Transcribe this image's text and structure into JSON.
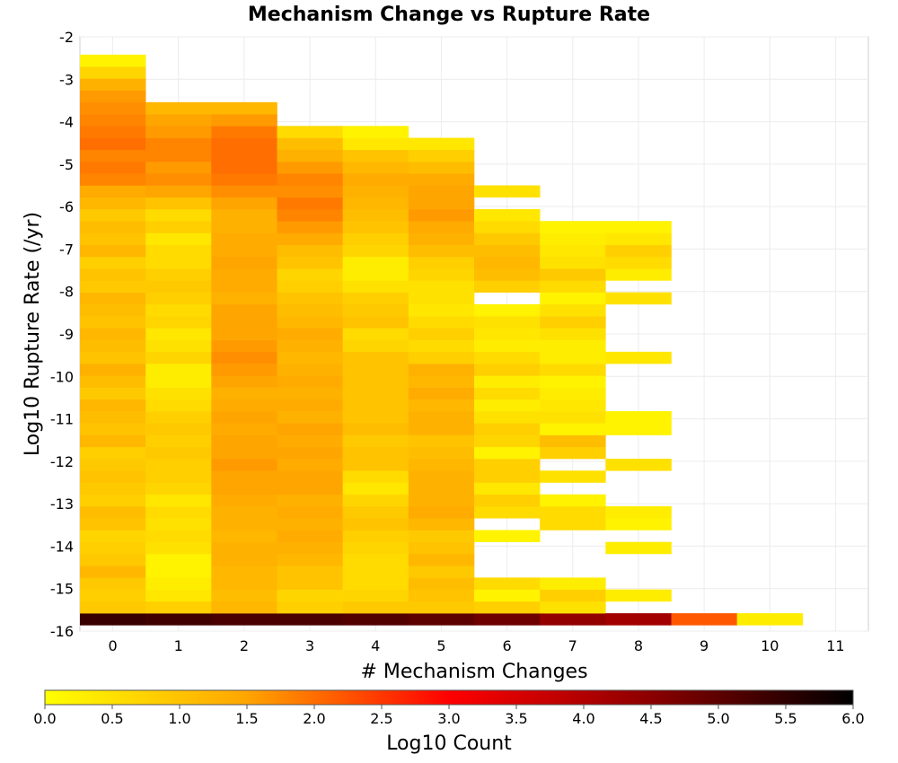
{
  "chart_data": {
    "type": "heatmap",
    "title": "Mechanism Change vs Rupture Rate",
    "xlabel": "# Mechanism Changes",
    "ylabel": "Log10 Rupture Rate (/yr)",
    "xlim": [
      -0.5,
      11.5
    ],
    "ylim": [
      -16,
      -2
    ],
    "x_ticks": [
      "0",
      "1",
      "2",
      "3",
      "4",
      "5",
      "6",
      "7",
      "8",
      "9",
      "10",
      "11"
    ],
    "y_ticks": [
      "-2",
      "-3",
      "-4",
      "-5",
      "-6",
      "-7",
      "-8",
      "-9",
      "-10",
      "-11",
      "-12",
      "-13",
      "-14",
      "-15",
      "-16"
    ],
    "y_bin_size": 0.28,
    "grid": true,
    "colorbar": {
      "label": "Log10 Count",
      "min": 0,
      "max": 6,
      "ticks": [
        "0.0",
        "0.5",
        "1.0",
        "1.5",
        "2.0",
        "2.5",
        "3.0",
        "3.5",
        "4.0",
        "4.5",
        "5.0",
        "5.5",
        "6.0"
      ],
      "colors": [
        "#ffff00",
        "#ffa500",
        "#ff0000",
        "#8b0000",
        "#000000"
      ]
    },
    "columns": [
      {
        "x": 0,
        "y_start": -15.86,
        "values": [
          5.4,
          0.9,
          0.8,
          0.9,
          1.2,
          0.9,
          0.8,
          0.7,
          1.0,
          1.1,
          0.8,
          0.9,
          1.0,
          0.9,
          0.8,
          1.2,
          1.0,
          1.1,
          1.2,
          0.9,
          1.1,
          1.3,
          1.0,
          1.1,
          1.2,
          1.0,
          1.1,
          1.2,
          0.9,
          1.0,
          0.8,
          1.2,
          1.0,
          1.1,
          0.9,
          1.2,
          1.4,
          1.8,
          1.9,
          1.8,
          2.0,
          1.9,
          1.8,
          1.7,
          1.6,
          1.3,
          0.7,
          0.2
        ]
      },
      {
        "x": 1,
        "y_start": -15.86,
        "values": [
          5.3,
          0.8,
          0.4,
          0.3,
          0.2,
          0.2,
          0.5,
          0.6,
          0.5,
          0.6,
          0.4,
          0.7,
          0.8,
          0.8,
          0.9,
          0.8,
          0.9,
          0.8,
          0.6,
          0.5,
          0.3,
          0.3,
          0.7,
          0.5,
          0.4,
          0.7,
          0.6,
          0.8,
          0.9,
          0.8,
          0.6,
          0.6,
          0.4,
          0.8,
          0.6,
          1.0,
          1.5,
          1.7,
          1.6,
          1.8,
          1.8,
          1.6,
          1.5,
          1.2
        ]
      },
      {
        "x": 2,
        "y_start": -15.86,
        "values": [
          5.2,
          1.2,
          1.1,
          1.2,
          1.2,
          1.3,
          1.3,
          1.2,
          1.3,
          1.3,
          1.4,
          1.5,
          1.5,
          1.6,
          1.5,
          1.5,
          1.4,
          1.5,
          1.4,
          1.3,
          1.5,
          1.6,
          1.7,
          1.6,
          1.5,
          1.5,
          1.5,
          1.3,
          1.4,
          1.4,
          1.5,
          1.4,
          1.4,
          1.3,
          1.3,
          1.5,
          1.7,
          1.9,
          2.0,
          2.0,
          2.0,
          1.9,
          1.6,
          1.2
        ]
      },
      {
        "x": 3,
        "y_start": -15.86,
        "values": [
          5.2,
          0.8,
          0.7,
          1.0,
          1.0,
          1.2,
          1.3,
          1.4,
          1.3,
          1.4,
          1.3,
          1.5,
          1.5,
          1.4,
          1.5,
          1.4,
          1.5,
          1.3,
          1.4,
          1.3,
          1.4,
          1.3,
          1.2,
          1.3,
          1.4,
          1.2,
          1.1,
          1.0,
          0.8,
          0.7,
          1.0,
          1.1,
          1.4,
          1.6,
          1.8,
          1.9,
          1.7,
          1.8,
          1.6,
          1.3,
          1.1,
          0.6
        ]
      },
      {
        "x": 4,
        "y_start": -15.86,
        "values": [
          5.1,
          0.9,
          0.7,
          0.6,
          0.6,
          0.6,
          0.7,
          0.8,
          1.0,
          0.9,
          0.7,
          0.4,
          0.6,
          1.0,
          1.0,
          0.9,
          1.1,
          1.0,
          1.0,
          1.0,
          1.0,
          1.0,
          1.0,
          0.7,
          0.6,
          1.0,
          0.9,
          0.8,
          0.5,
          0.3,
          0.3,
          0.7,
          0.8,
          1.0,
          1.1,
          1.2,
          1.3,
          1.4,
          1.2,
          1.0,
          0.4,
          0.2
        ]
      },
      {
        "x": 5,
        "y_start": -15.86,
        "values": [
          5.0,
          0.9,
          1.0,
          1.1,
          0.9,
          1.2,
          1.0,
          0.9,
          1.2,
          1.4,
          1.3,
          1.3,
          1.3,
          1.2,
          1.1,
          1.0,
          1.3,
          1.3,
          1.2,
          1.4,
          1.2,
          1.3,
          0.8,
          0.6,
          0.8,
          0.6,
          0.4,
          0.5,
          0.5,
          0.7,
          0.8,
          1.1,
          1.3,
          1.4,
          1.6,
          1.5,
          1.5,
          1.4,
          1.1,
          0.8,
          0.4
        ]
      },
      {
        "x": 6,
        "y_start": -15.86,
        "values": [
          4.8,
          0.8,
          0.2,
          0.6,
          null,
          null,
          null,
          0.2,
          null,
          0.6,
          0.8,
          0.4,
          0.8,
          0.8,
          0.2,
          0.7,
          0.8,
          0.5,
          0.3,
          0.6,
          0.3,
          0.8,
          0.6,
          0.3,
          0.4,
          0.5,
          0.2,
          null,
          0.8,
          1.1,
          1.2,
          1.1,
          0.9,
          0.6,
          0.4,
          null,
          0.5
        ]
      },
      {
        "x": 7,
        "y_start": -15.86,
        "values": [
          4.4,
          0.5,
          0.8,
          0.3,
          null,
          null,
          null,
          null,
          0.6,
          0.6,
          0.2,
          null,
          0.5,
          null,
          0.8,
          1.1,
          0.2,
          0.5,
          0.4,
          0.3,
          0.2,
          0.6,
          0.3,
          0.3,
          0.5,
          0.8,
          0.5,
          0.2,
          0.6,
          0.9,
          0.5,
          0.4,
          0.3,
          0.2
        ]
      },
      {
        "x": 8,
        "y_start": -15.86,
        "values": [
          4.2,
          null,
          0.3,
          null,
          null,
          null,
          0.3,
          null,
          0.2,
          0.3,
          null,
          null,
          null,
          0.5,
          null,
          null,
          0.2,
          0.2,
          null,
          null,
          null,
          null,
          0.4,
          null,
          null,
          null,
          null,
          0.5,
          null,
          0.3,
          0.6,
          0.8,
          0.4,
          0.2
        ]
      },
      {
        "x": 9,
        "y_start": -15.86,
        "values": [
          2.2
        ]
      },
      {
        "x": 10,
        "y_start": -15.86,
        "values": [
          0.3
        ]
      }
    ]
  }
}
